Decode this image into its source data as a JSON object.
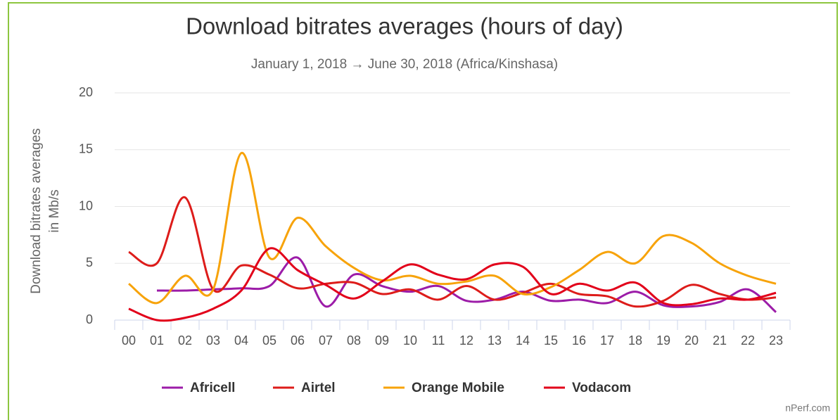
{
  "chart_data": {
    "type": "line",
    "title": "Download bitrates averages (hours of day)",
    "subtitle": "January 1, 2018 → June 30, 2018 (Africa/Kinshasa)",
    "y_label": [
      "Download bitrates averages",
      "in Mb/s"
    ],
    "credits": "nPerf.com",
    "categories": [
      "00",
      "01",
      "02",
      "03",
      "04",
      "05",
      "06",
      "07",
      "08",
      "09",
      "10",
      "11",
      "12",
      "13",
      "14",
      "15",
      "16",
      "17",
      "18",
      "19",
      "20",
      "21",
      "22",
      "23"
    ],
    "series": [
      {
        "name": "Africell",
        "color": "#9c1ca8",
        "values": [
          null,
          2.6,
          2.6,
          2.7,
          2.8,
          3.0,
          5.5,
          1.2,
          4.0,
          3.0,
          2.5,
          3.0,
          1.7,
          1.8,
          2.5,
          1.7,
          1.8,
          1.5,
          2.5,
          1.3,
          1.2,
          1.6,
          2.7,
          0.7
        ]
      },
      {
        "name": "Airtel",
        "color": "#dd1c1a",
        "values": [
          6.0,
          5.0,
          10.8,
          2.7,
          4.8,
          4.0,
          2.8,
          3.2,
          3.3,
          2.3,
          2.7,
          1.8,
          3.0,
          1.8,
          2.4,
          3.2,
          2.3,
          2.1,
          1.2,
          1.7,
          3.1,
          2.3,
          1.8,
          2.0
        ]
      },
      {
        "name": "Orange Mobile",
        "color": "#f7a30a",
        "values": [
          3.2,
          1.5,
          3.9,
          2.7,
          14.7,
          5.5,
          9.0,
          6.5,
          4.6,
          3.5,
          3.9,
          3.2,
          3.4,
          3.9,
          2.3,
          2.9,
          4.4,
          6.0,
          5.0,
          7.4,
          6.8,
          5.0,
          3.9,
          3.2
        ]
      },
      {
        "name": "Vodacom",
        "color": "#e2001a",
        "values": [
          1.0,
          0.0,
          0.2,
          1.0,
          2.6,
          6.3,
          4.4,
          3.1,
          1.9,
          3.4,
          4.9,
          4.0,
          3.6,
          4.9,
          4.7,
          2.3,
          3.2,
          2.6,
          3.3,
          1.5,
          1.4,
          1.9,
          1.8,
          2.4
        ]
      }
    ],
    "ylim": [
      0,
      20
    ],
    "yticks": [
      0,
      5,
      10,
      15,
      20
    ],
    "grid": true,
    "legend": "bottom"
  }
}
